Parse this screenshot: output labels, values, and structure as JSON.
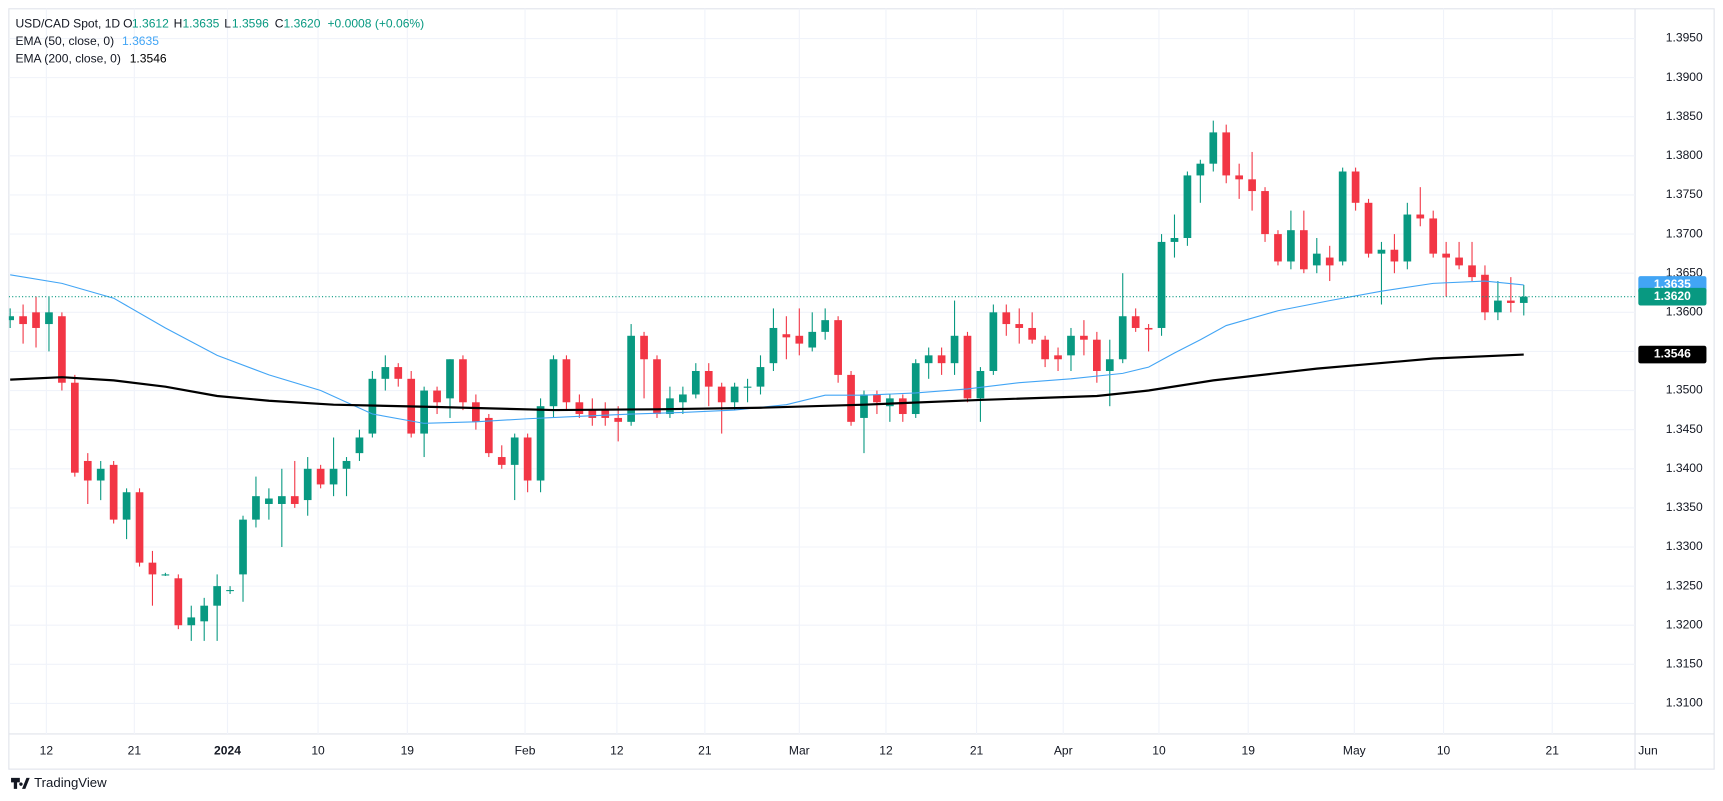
{
  "chart_data": {
    "type": "candlestick",
    "title": "USD/CAD Spot, 1D",
    "header_ohlc": [
      {
        "label": "O",
        "value": "1.3612"
      },
      {
        "label": "H",
        "value": "1.3635"
      },
      {
        "label": "L",
        "value": "1.3596"
      },
      {
        "label": "C",
        "value": "1.3620"
      }
    ],
    "change": "+0.0008 (+0.06%)",
    "up_color": "#089981",
    "down_color": "#f23645",
    "open": [
      1.359,
      1.3595,
      1.36,
      1.3585,
      1.3595,
      1.351,
      1.341,
      1.3385,
      1.3405,
      1.3335,
      1.337,
      1.328,
      1.3265,
      1.326,
      1.32,
      1.3205,
      1.3225,
      1.3245,
      1.3265,
      1.3335,
      1.3355,
      1.3355,
      1.3365,
      1.336,
      1.34,
      1.338,
      1.34,
      1.342,
      1.3445,
      1.3515,
      1.353,
      1.3515,
      1.3445,
      1.35,
      1.349,
      1.354,
      1.3485,
      1.3465,
      1.3415,
      1.3405,
      1.344,
      1.3385,
      1.348,
      1.354,
      1.3485,
      1.3475,
      1.3475,
      1.3465,
      1.346,
      1.357,
      1.354,
      1.347,
      1.3485,
      1.3495,
      1.3525,
      1.3505,
      1.3485,
      1.3505,
      1.3505,
      1.3535,
      1.3572,
      1.357,
      1.3555,
      1.3575,
      1.359,
      1.352,
      1.3465,
      1.3495,
      1.348,
      1.349,
      1.347,
      1.3535,
      1.3545,
      1.3535,
      1.357,
      1.349,
      1.3525,
      1.36,
      1.3585,
      1.358,
      1.3565,
      1.3545,
      1.3545,
      1.357,
      1.3565,
      1.3525,
      1.354,
      1.3595,
      1.358,
      1.358,
      1.369,
      1.3695,
      1.3775,
      1.379,
      1.383,
      1.3775,
      1.377,
      1.3755,
      1.37,
      1.3665,
      1.3705,
      1.366,
      1.367,
      1.3665,
      1.378,
      1.374,
      1.3675,
      1.368,
      1.3665,
      1.3725,
      1.372,
      1.3675,
      1.367,
      1.366,
      1.3648,
      1.36,
      1.3615,
      1.3612
    ],
    "high": [
      1.3605,
      1.361,
      1.362,
      1.362,
      1.36,
      1.352,
      1.342,
      1.341,
      1.341,
      1.3375,
      1.3375,
      1.3295,
      1.3267,
      1.3265,
      1.3225,
      1.3235,
      1.3265,
      1.325,
      1.334,
      1.339,
      1.3375,
      1.34,
      1.341,
      1.3415,
      1.3405,
      1.344,
      1.3415,
      1.345,
      1.3525,
      1.3545,
      1.3535,
      1.3525,
      1.3505,
      1.3505,
      1.354,
      1.3545,
      1.3495,
      1.347,
      1.343,
      1.3445,
      1.3445,
      1.349,
      1.3545,
      1.3545,
      1.3495,
      1.349,
      1.3485,
      1.348,
      1.3585,
      1.3575,
      1.3545,
      1.3505,
      1.3505,
      1.3535,
      1.3535,
      1.351,
      1.351,
      1.3515,
      1.3545,
      1.3605,
      1.3595,
      1.3605,
      1.36,
      1.3605,
      1.3595,
      1.3525,
      1.35,
      1.35,
      1.3495,
      1.3495,
      1.354,
      1.3555,
      1.3555,
      1.3615,
      1.3575,
      1.353,
      1.361,
      1.361,
      1.3605,
      1.36,
      1.357,
      1.3555,
      1.358,
      1.359,
      1.3575,
      1.3565,
      1.365,
      1.3605,
      1.3585,
      1.37,
      1.3725,
      1.378,
      1.3795,
      1.3845,
      1.384,
      1.379,
      1.3805,
      1.376,
      1.3705,
      1.373,
      1.373,
      1.3695,
      1.3685,
      1.3785,
      1.3785,
      1.3745,
      1.369,
      1.37,
      1.374,
      1.376,
      1.373,
      1.369,
      1.369,
      1.369,
      1.366,
      1.364,
      1.3645,
      1.3635
    ],
    "low": [
      1.358,
      1.356,
      1.3555,
      1.355,
      1.35,
      1.339,
      1.3355,
      1.336,
      1.333,
      1.331,
      1.3275,
      1.3225,
      1.3263,
      1.3195,
      1.318,
      1.318,
      1.318,
      1.324,
      1.323,
      1.3325,
      1.3335,
      1.33,
      1.335,
      1.334,
      1.3375,
      1.3365,
      1.3365,
      1.341,
      1.344,
      1.35,
      1.3505,
      1.344,
      1.3415,
      1.347,
      1.3465,
      1.3475,
      1.345,
      1.3415,
      1.34,
      1.336,
      1.337,
      1.337,
      1.3465,
      1.3475,
      1.3465,
      1.3455,
      1.3455,
      1.3435,
      1.3455,
      1.349,
      1.3465,
      1.3465,
      1.347,
      1.349,
      1.348,
      1.3445,
      1.3475,
      1.3485,
      1.3495,
      1.3525,
      1.354,
      1.3545,
      1.355,
      1.3565,
      1.351,
      1.3455,
      1.342,
      1.347,
      1.346,
      1.346,
      1.3465,
      1.3515,
      1.352,
      1.352,
      1.3485,
      1.346,
      1.352,
      1.357,
      1.356,
      1.356,
      1.353,
      1.3525,
      1.3525,
      1.3545,
      1.351,
      1.348,
      1.3535,
      1.3575,
      1.355,
      1.357,
      1.367,
      1.3685,
      1.374,
      1.378,
      1.3765,
      1.3745,
      1.373,
      1.369,
      1.366,
      1.3655,
      1.365,
      1.365,
      1.364,
      1.366,
      1.373,
      1.367,
      1.361,
      1.365,
      1.3655,
      1.371,
      1.367,
      1.362,
      1.3655,
      1.364,
      1.359,
      1.359,
      1.36,
      1.3596
    ],
    "close": [
      1.3595,
      1.3585,
      1.358,
      1.36,
      1.351,
      1.3395,
      1.3385,
      1.34,
      1.3335,
      1.337,
      1.328,
      1.3265,
      1.3265,
      1.32,
      1.321,
      1.3225,
      1.325,
      1.3245,
      1.3335,
      1.3365,
      1.3362,
      1.3365,
      1.3355,
      1.34,
      1.338,
      1.34,
      1.341,
      1.344,
      1.3515,
      1.353,
      1.3515,
      1.3445,
      1.35,
      1.3485,
      1.354,
      1.3485,
      1.346,
      1.342,
      1.3405,
      1.344,
      1.3385,
      1.348,
      1.354,
      1.3485,
      1.347,
      1.3465,
      1.3465,
      1.346,
      1.357,
      1.354,
      1.347,
      1.349,
      1.3495,
      1.3525,
      1.3505,
      1.3485,
      1.3505,
      1.3505,
      1.353,
      1.358,
      1.3568,
      1.356,
      1.3575,
      1.359,
      1.352,
      1.346,
      1.3495,
      1.3485,
      1.349,
      1.347,
      1.3535,
      1.3545,
      1.3535,
      1.357,
      1.349,
      1.3525,
      1.36,
      1.3585,
      1.358,
      1.3565,
      1.354,
      1.354,
      1.357,
      1.3565,
      1.3525,
      1.354,
      1.3595,
      1.358,
      1.3578,
      1.369,
      1.3695,
      1.3775,
      1.379,
      1.383,
      1.3775,
      1.377,
      1.3755,
      1.37,
      1.3665,
      1.3705,
      1.3655,
      1.3675,
      1.366,
      1.378,
      1.374,
      1.3675,
      1.368,
      1.3665,
      1.3725,
      1.372,
      1.3675,
      1.367,
      1.366,
      1.3645,
      1.36,
      1.3615,
      1.3612,
      1.362
    ],
    "close_label": "1.3620",
    "lines": [
      {
        "name": "EMA (50, close, 0)",
        "value_label": "1.3635",
        "color": "#42a5f5",
        "width": 1,
        "x": [
          0,
          4,
          8,
          12,
          16,
          20,
          24,
          28,
          32,
          36,
          40,
          44,
          48,
          52,
          56,
          60,
          63,
          66,
          70,
          74,
          78,
          82,
          86,
          88,
          90,
          92,
          94,
          98,
          102,
          106,
          110,
          114,
          117
        ],
        "values": [
          1.3648,
          1.3637,
          1.3618,
          1.358,
          1.3545,
          1.352,
          1.35,
          1.347,
          1.3458,
          1.346,
          1.3464,
          1.3467,
          1.347,
          1.3472,
          1.3475,
          1.3482,
          1.3494,
          1.3494,
          1.3497,
          1.3502,
          1.351,
          1.3515,
          1.3522,
          1.353,
          1.3548,
          1.3565,
          1.3583,
          1.3602,
          1.3615,
          1.3627,
          1.3637,
          1.364,
          1.3635
        ]
      },
      {
        "name": "EMA (200, close, 0)",
        "value_label": "1.3546",
        "color": "#000000",
        "width": 2,
        "x": [
          0,
          4,
          8,
          12,
          16,
          20,
          25,
          33,
          42,
          50,
          58,
          66,
          75,
          84,
          88,
          93,
          101,
          110,
          117
        ],
        "values": [
          1.3514,
          1.3517,
          1.3513,
          1.3505,
          1.3493,
          1.3487,
          1.3482,
          1.3479,
          1.3475,
          1.3476,
          1.3478,
          1.3482,
          1.3488,
          1.3493,
          1.35,
          1.3513,
          1.3528,
          1.3541,
          1.3546
        ]
      }
    ],
    "xlim": [
      -0.1,
      125.6
    ],
    "xticks": [
      {
        "value": 2.8,
        "label": "12"
      },
      {
        "value": 9.6,
        "label": "21"
      },
      {
        "value": 16.8,
        "label": "2024"
      },
      {
        "value": 23.8,
        "label": "10"
      },
      {
        "value": 30.7,
        "label": "19"
      },
      {
        "value": 39.8,
        "label": "Feb"
      },
      {
        "value": 46.9,
        "label": "12"
      },
      {
        "value": 53.7,
        "label": "21"
      },
      {
        "value": 61.0,
        "label": "Mar"
      },
      {
        "value": 67.7,
        "label": "12"
      },
      {
        "value": 74.7,
        "label": "21"
      },
      {
        "value": 81.4,
        "label": "Apr"
      },
      {
        "value": 88.8,
        "label": "10"
      },
      {
        "value": 95.7,
        "label": "19"
      },
      {
        "value": 103.9,
        "label": "May"
      },
      {
        "value": 110.8,
        "label": "10"
      },
      {
        "value": 119.2,
        "label": "21"
      },
      {
        "value": 126.6,
        "label": "Jun"
      }
    ],
    "ylim": [
      1.3061,
      1.3988
    ],
    "yticks": [
      {
        "value": 1.31,
        "label": "1.3100"
      },
      {
        "value": 1.315,
        "label": "1.3150"
      },
      {
        "value": 1.32,
        "label": "1.3200"
      },
      {
        "value": 1.325,
        "label": "1.3250"
      },
      {
        "value": 1.33,
        "label": "1.3300"
      },
      {
        "value": 1.335,
        "label": "1.3350"
      },
      {
        "value": 1.34,
        "label": "1.3400"
      },
      {
        "value": 1.345,
        "label": "1.3450"
      },
      {
        "value": 1.35,
        "label": "1.3500"
      },
      {
        "value": 1.355,
        "label": "1.3550"
      },
      {
        "value": 1.36,
        "label": "1.3600"
      },
      {
        "value": 1.365,
        "label": "1.3650"
      },
      {
        "value": 1.37,
        "label": "1.3700"
      },
      {
        "value": 1.375,
        "label": "1.3750"
      },
      {
        "value": 1.38,
        "label": "1.3800"
      },
      {
        "value": 1.385,
        "label": "1.3850"
      },
      {
        "value": 1.39,
        "label": "1.3900"
      },
      {
        "value": 1.395,
        "label": "1.3950"
      }
    ],
    "grid": true,
    "brand": "TradingView"
  }
}
